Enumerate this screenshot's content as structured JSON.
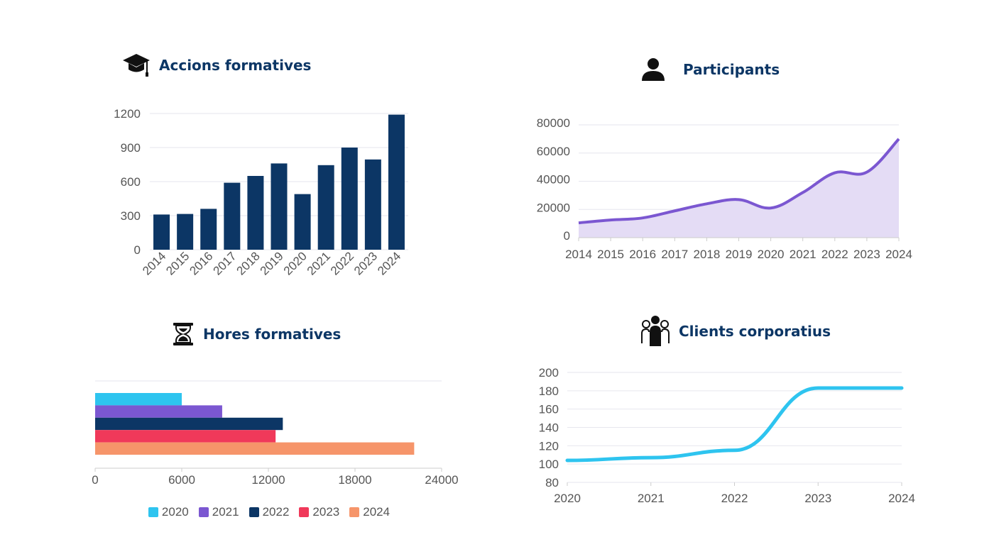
{
  "titles": {
    "accions": "Accions formatives",
    "participants": "Participants",
    "hores": "Hores formatives",
    "clients": "Clients corporatius"
  },
  "icons": {
    "accions": "graduation-cap-icon",
    "participants": "person-icon",
    "hores": "hourglass-icon",
    "clients": "group-icon"
  },
  "chart_data": [
    {
      "id": "accions",
      "type": "bar",
      "title": "Accions formatives",
      "categories": [
        "2014",
        "2015",
        "2016",
        "2017",
        "2018",
        "2019",
        "2020",
        "2021",
        "2022",
        "2023",
        "2024"
      ],
      "values": [
        310,
        315,
        360,
        590,
        650,
        760,
        490,
        745,
        900,
        795,
        1190
      ],
      "yticks": [
        0,
        300,
        600,
        900,
        1200
      ],
      "ylim": [
        0,
        1200
      ],
      "color": "#0c3665"
    },
    {
      "id": "participants",
      "type": "area",
      "title": "Participants",
      "categories": [
        "2014",
        "2015",
        "2016",
        "2017",
        "2018",
        "2019",
        "2020",
        "2021",
        "2022",
        "2023",
        "2024"
      ],
      "values": [
        10500,
        12500,
        14000,
        19000,
        24000,
        27000,
        21000,
        32000,
        46000,
        46500,
        70000
      ],
      "yticks": [
        0,
        20000,
        40000,
        60000,
        80000
      ],
      "ylim": [
        0,
        80000
      ],
      "color": "#7b57d1",
      "fill": "#e4dcf5"
    },
    {
      "id": "hores",
      "type": "bar",
      "orientation": "horizontal",
      "title": "Hores formatives",
      "series": [
        {
          "name": "2020",
          "value": 6000,
          "color": "#2ec4ef"
        },
        {
          "name": "2021",
          "value": 8800,
          "color": "#7b57d1"
        },
        {
          "name": "2022",
          "value": 13000,
          "color": "#0c3665"
        },
        {
          "name": "2023",
          "value": 12500,
          "color": "#f0395a"
        },
        {
          "name": "2024",
          "value": 22100,
          "color": "#f6956a"
        }
      ],
      "xticks": [
        0,
        6000,
        12000,
        18000,
        24000
      ],
      "xlim": [
        0,
        24000
      ],
      "legend": "bottom"
    },
    {
      "id": "clients",
      "type": "line",
      "title": "Clients corporatius",
      "categories": [
        "2020",
        "2021",
        "2022",
        "2023",
        "2024"
      ],
      "values": [
        104,
        107,
        115,
        183,
        183
      ],
      "yticks": [
        80,
        100,
        120,
        140,
        160,
        180,
        200
      ],
      "ylim": [
        80,
        200
      ],
      "color": "#2ec4ef"
    }
  ]
}
